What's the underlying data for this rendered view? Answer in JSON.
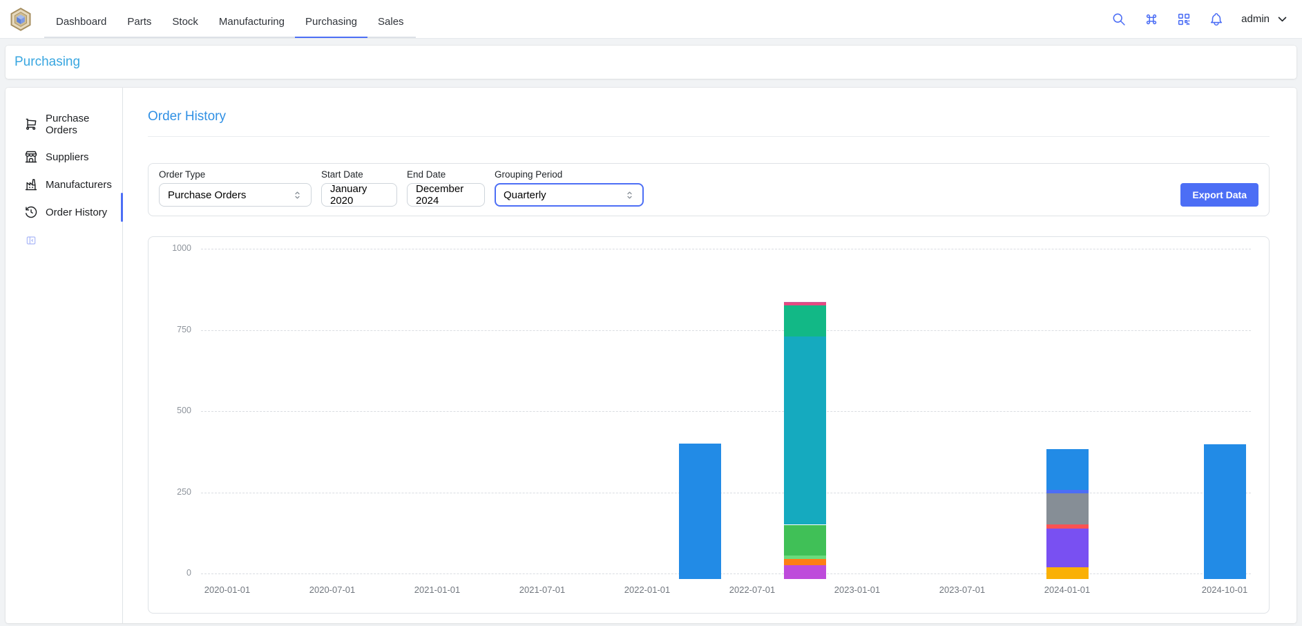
{
  "header": {
    "tabs": [
      "Dashboard",
      "Parts",
      "Stock",
      "Manufacturing",
      "Purchasing",
      "Sales"
    ],
    "active_tab": "Purchasing",
    "user_label": "admin"
  },
  "breadcrumb": {
    "label": "Purchasing"
  },
  "sidebar": {
    "items": [
      {
        "label": "Purchase Orders",
        "icon": "shopping-cart"
      },
      {
        "label": "Suppliers",
        "icon": "building-store"
      },
      {
        "label": "Manufacturers",
        "icon": "building-factory"
      },
      {
        "label": "Order History",
        "icon": "history",
        "active": true
      }
    ]
  },
  "page": {
    "title": "Order History"
  },
  "filters": {
    "order_type": {
      "label": "Order Type",
      "value": "Purchase Orders"
    },
    "start_date": {
      "label": "Start Date",
      "value": "January 2020"
    },
    "end_date": {
      "label": "End Date",
      "value": "December 2024"
    },
    "grouping_period": {
      "label": "Grouping Period",
      "value": "Quarterly",
      "focused": true
    },
    "export_button": "Export Data"
  },
  "colors": {
    "accent_indigo": "#4c6ef5",
    "breadcrumb_blue": "#38a6e0",
    "title_blue": "#3090e4",
    "grid_dash": "#d9dce1"
  },
  "chart_data": {
    "type": "bar",
    "stacked": true,
    "grouping": "Quarterly",
    "legend": "none",
    "grid": "horizontal-dashed",
    "ylim": [
      0,
      1000
    ],
    "y_ticks": [
      0,
      250,
      500,
      750,
      1000
    ],
    "x_slot_count": 20,
    "x_labels": [
      {
        "text": "2020-01-01",
        "slot": 0
      },
      {
        "text": "2020-07-01",
        "slot": 2
      },
      {
        "text": "2021-01-01",
        "slot": 4
      },
      {
        "text": "2021-07-01",
        "slot": 6
      },
      {
        "text": "2022-01-01",
        "slot": 8
      },
      {
        "text": "2022-07-01",
        "slot": 10
      },
      {
        "text": "2023-01-01",
        "slot": 12
      },
      {
        "text": "2023-07-01",
        "slot": 14
      },
      {
        "text": "2024-01-01",
        "slot": 16
      },
      {
        "text": "2024-10-01",
        "slot": 19
      }
    ],
    "bars": [
      {
        "date": "2022-04-01",
        "slot": 9,
        "total": 400,
        "segments": [
          {
            "value": 400,
            "color": "#228be6"
          }
        ]
      },
      {
        "date": "2022-10-01",
        "slot": 11,
        "total": 837,
        "segments": [
          {
            "value": 25,
            "color": "#be4bdb"
          },
          {
            "value": 20,
            "color": "#fd7e14"
          },
          {
            "value": 10,
            "color": "#69db7c"
          },
          {
            "value": 95,
            "color": "#40c057"
          },
          {
            "value": 580,
            "color": "#15aabf"
          },
          {
            "value": 95,
            "color": "#12b886"
          },
          {
            "value": 8,
            "color": "#e64980"
          },
          {
            "value": 4,
            "color": "#c75d9c"
          }
        ]
      },
      {
        "date": "2024-01-01",
        "slot": 16,
        "total": 382,
        "segments": [
          {
            "value": 20,
            "color": "#fab005"
          },
          {
            "value": 118,
            "color": "#7950f2"
          },
          {
            "value": 13,
            "color": "#fa5252"
          },
          {
            "value": 96,
            "color": "#868e96"
          },
          {
            "value": 11,
            "color": "#4c6ef5"
          },
          {
            "value": 124,
            "color": "#228be6"
          }
        ]
      },
      {
        "date": "2024-10-01",
        "slot": 19,
        "total": 398,
        "segments": [
          {
            "value": 398,
            "color": "#228be6"
          }
        ]
      }
    ]
  }
}
